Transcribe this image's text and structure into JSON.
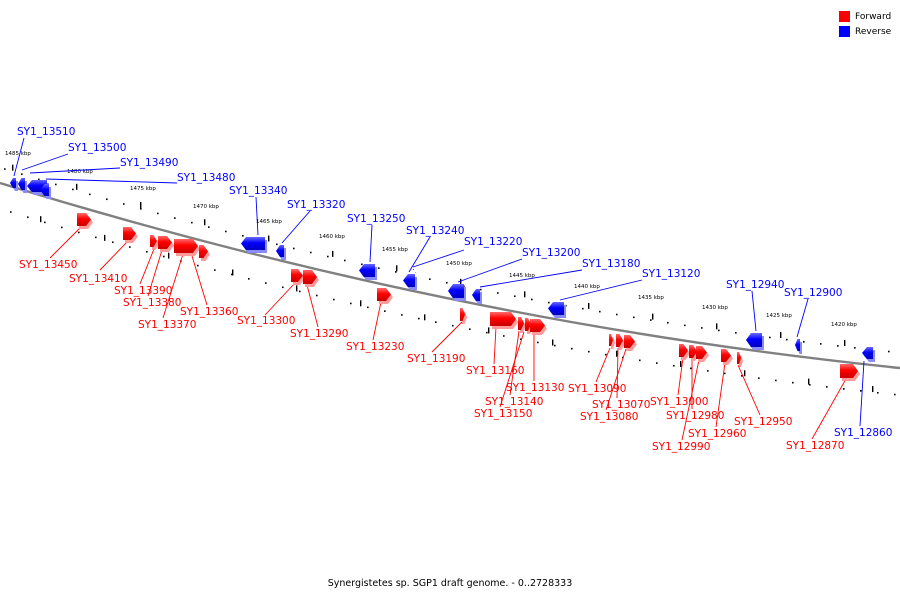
{
  "legend": {
    "forward": {
      "label": "Forward",
      "color": "#ff0000"
    },
    "reverse": {
      "label": "Reverse",
      "color": "#0000ff"
    }
  },
  "caption": "Synergistetes sp. SGP1 draft genome. - 0..2728333",
  "kbp_ticks": [
    "1485 kbp",
    "1480 kbp",
    "1475 kbp",
    "1470 kbp",
    "1465 kbp",
    "1460 kbp",
    "1455 kbp",
    "1450 kbp",
    "1445 kbp",
    "1440 kbp",
    "1435 kbp",
    "1430 kbp",
    "1425 kbp",
    "1420 kbp"
  ],
  "genes": [
    {
      "name": "SY1_13510",
      "strand": "reverse"
    },
    {
      "name": "SY1_13500",
      "strand": "reverse"
    },
    {
      "name": "SY1_13490",
      "strand": "reverse"
    },
    {
      "name": "SY1_13480",
      "strand": "reverse"
    },
    {
      "name": "SY1_13340",
      "strand": "reverse"
    },
    {
      "name": "SY1_13320",
      "strand": "reverse"
    },
    {
      "name": "SY1_13250",
      "strand": "reverse"
    },
    {
      "name": "SY1_13240",
      "strand": "reverse"
    },
    {
      "name": "SY1_13220",
      "strand": "reverse"
    },
    {
      "name": "SY1_13200",
      "strand": "reverse"
    },
    {
      "name": "SY1_13180",
      "strand": "reverse"
    },
    {
      "name": "SY1_13120",
      "strand": "reverse"
    },
    {
      "name": "SY1_12940",
      "strand": "reverse"
    },
    {
      "name": "SY1_12900",
      "strand": "reverse"
    },
    {
      "name": "SY1_12860",
      "strand": "reverse"
    },
    {
      "name": "SY1_13450",
      "strand": "forward"
    },
    {
      "name": "SY1_13410",
      "strand": "forward"
    },
    {
      "name": "SY1_13390",
      "strand": "forward"
    },
    {
      "name": "SY1_13380",
      "strand": "forward"
    },
    {
      "name": "SY1_13370",
      "strand": "forward"
    },
    {
      "name": "SY1_13360",
      "strand": "forward"
    },
    {
      "name": "SY1_13300",
      "strand": "forward"
    },
    {
      "name": "SY1_13290",
      "strand": "forward"
    },
    {
      "name": "SY1_13230",
      "strand": "forward"
    },
    {
      "name": "SY1_13190",
      "strand": "forward"
    },
    {
      "name": "SY1_13160",
      "strand": "forward"
    },
    {
      "name": "SY1_13140",
      "strand": "forward"
    },
    {
      "name": "SY1_13150",
      "strand": "forward"
    },
    {
      "name": "SY1_13130",
      "strand": "forward"
    },
    {
      "name": "SY1_13090",
      "strand": "forward"
    },
    {
      "name": "SY1_13070",
      "strand": "forward"
    },
    {
      "name": "SY1_13080",
      "strand": "forward"
    },
    {
      "name": "SY1_13000",
      "strand": "forward"
    },
    {
      "name": "SY1_12980",
      "strand": "forward"
    },
    {
      "name": "SY1_12990",
      "strand": "forward"
    },
    {
      "name": "SY1_12960",
      "strand": "forward"
    },
    {
      "name": "SY1_12950",
      "strand": "forward"
    },
    {
      "name": "SY1_12870",
      "strand": "forward"
    }
  ]
}
